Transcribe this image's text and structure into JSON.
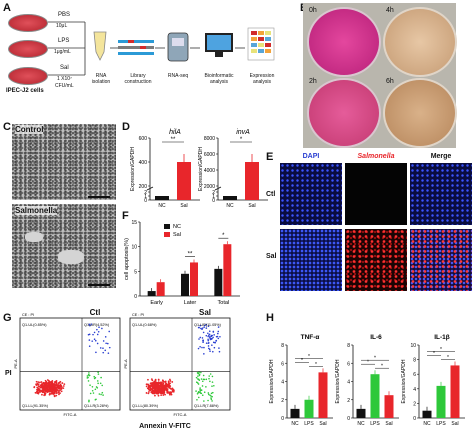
{
  "panels": {
    "A": "A",
    "B": "B",
    "C": "C",
    "D": "D",
    "E": "E",
    "F": "F",
    "G": "G",
    "H": "H"
  },
  "panel_a": {
    "treatments": [
      {
        "name": "PBS",
        "dose": "10μL"
      },
      {
        "name": "LPS",
        "dose": "1μg/mL"
      },
      {
        "name": "Sal",
        "dose": "1 X10⁷",
        "dose2": "CFU/mL"
      }
    ],
    "cells_label": "IPEC-J2 cells",
    "steps": [
      "RNA",
      "Library",
      "RNA-seq",
      "Bioinformatic",
      "Expression"
    ],
    "steps2": [
      "isolation",
      "construction",
      "",
      "analysis",
      "analysis"
    ]
  },
  "panel_b": {
    "times": [
      "0h",
      "4h",
      "2h",
      "6h"
    ]
  },
  "panel_c": {
    "labels": [
      "Control",
      "Salmonella"
    ]
  },
  "panel_e": {
    "headers": [
      "DAPI",
      "Salmonella",
      "Merge"
    ],
    "rows": [
      "Ctl",
      "Sal"
    ],
    "colors": {
      "dapi": "#2a3fd1",
      "salmonella": "#e8262b"
    }
  },
  "panel_g": {
    "plots": [
      {
        "title": "Ctl",
        "q_ul": "Q1-UL(0.85%)",
        "q_ur": "Q1-UR(4.52%)",
        "q_ll": "Q1-LL(91.35%)",
        "q_lr": "Q1-LR(3.28%)",
        "sub": "CE : PI"
      },
      {
        "title": "Sal",
        "q_ul": "Q1-UL(0.68%)",
        "q_ur": "Q1-UR(11.05%)",
        "q_ll": "Q1-LL(80.39%)",
        "q_lr": "Q1-LR(7.88%)",
        "sub": "CE : PI"
      }
    ],
    "ylabel": "PI",
    "xlabel": "Annexin V-FITC",
    "axis_x": "FITC-A",
    "axis_y": "PE-A"
  },
  "chart_data": [
    {
      "id": "D-hilA",
      "type": "bar",
      "title": "hilA",
      "ylabel": "Expression/GAPDH",
      "categories": [
        "NC",
        "Sal"
      ],
      "values": [
        1,
        400
      ],
      "ylim": [
        0,
        600
      ],
      "yticks": [
        "0",
        "1",
        "2",
        "200",
        "400",
        "600"
      ],
      "significance": "**"
    },
    {
      "id": "D-invA",
      "type": "bar",
      "title": "invA",
      "ylabel": "Expression/GAPDH",
      "categories": [
        "NC",
        "Sal"
      ],
      "values": [
        1,
        5000
      ],
      "ylim": [
        0,
        8000
      ],
      "yticks": [
        "0",
        "1",
        "2",
        "2000",
        "4000",
        "6000",
        "8000"
      ],
      "significance": "*"
    },
    {
      "id": "F",
      "type": "bar",
      "ylabel": "cell apoptosis(%)",
      "categories": [
        "Early",
        "Later",
        "Total"
      ],
      "series": [
        {
          "name": "NC",
          "values": [
            1.0,
            4.5,
            5.5
          ],
          "color": "#111111"
        },
        {
          "name": "Sal",
          "values": [
            2.8,
            6.8,
            10.5
          ],
          "color": "#e8262b"
        }
      ],
      "ylim": [
        0,
        15
      ],
      "yticks": [
        "0",
        "5",
        "10",
        "15"
      ],
      "significance": [
        "",
        "**",
        "*"
      ]
    },
    {
      "id": "H-TNF",
      "type": "bar",
      "title": "TNF-α",
      "ylabel": "Expression/GAPDH",
      "categories": [
        "NC",
        "LPS",
        "Sal"
      ],
      "values": [
        1.0,
        2.0,
        5.0
      ],
      "colors": [
        "#111111",
        "#2ec83a",
        "#e8262b"
      ],
      "ylim": [
        0,
        8
      ],
      "yticks": [
        "0",
        "2",
        "4",
        "6",
        "8"
      ]
    },
    {
      "id": "H-IL6",
      "type": "bar",
      "title": "IL-6",
      "ylabel": "Expression/GAPDH",
      "categories": [
        "NC",
        "LPS",
        "Sal"
      ],
      "values": [
        1.0,
        4.8,
        2.5
      ],
      "colors": [
        "#111111",
        "#2ec83a",
        "#e8262b"
      ],
      "ylim": [
        0,
        8
      ],
      "yticks": [
        "0",
        "2",
        "4",
        "6",
        "8"
      ]
    },
    {
      "id": "H-IL1b",
      "type": "bar",
      "title": "IL-1β",
      "ylabel": "Expression/GAPDH",
      "categories": [
        "NC",
        "LPS",
        "Sal"
      ],
      "values": [
        1.0,
        4.4,
        7.2
      ],
      "colors": [
        "#111111",
        "#2ec83a",
        "#e8262b"
      ],
      "ylim": [
        0,
        10
      ],
      "yticks": [
        "0",
        "2",
        "4",
        "6",
        "8",
        "10"
      ]
    }
  ]
}
